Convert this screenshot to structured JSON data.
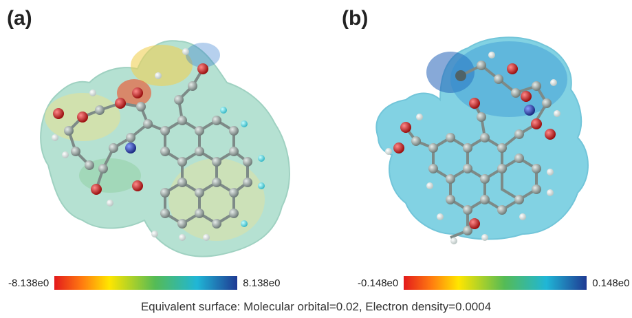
{
  "panels": [
    {
      "label": "(a)",
      "scale_min": "-8.138e0",
      "scale_max": "8.138e0"
    },
    {
      "label": "(b)",
      "scale_min": "-0.148e0",
      "scale_max": "0.148e0"
    }
  ],
  "caption": "Equivalent surface: Molecular orbital=0.02, Electron density=0.0004",
  "colors": {
    "scale": [
      "#e31a1c",
      "#ffe600",
      "#55bb55",
      "#20b6d6",
      "#1f3a93"
    ],
    "surface_a": "#9fd5c4",
    "surface_b": "#5cc4de",
    "carbon": "#8f9c99",
    "oxygen": "#c41a1a",
    "nitrogen": "#2a3fa0",
    "hydrogen": "#f4f4f4"
  }
}
